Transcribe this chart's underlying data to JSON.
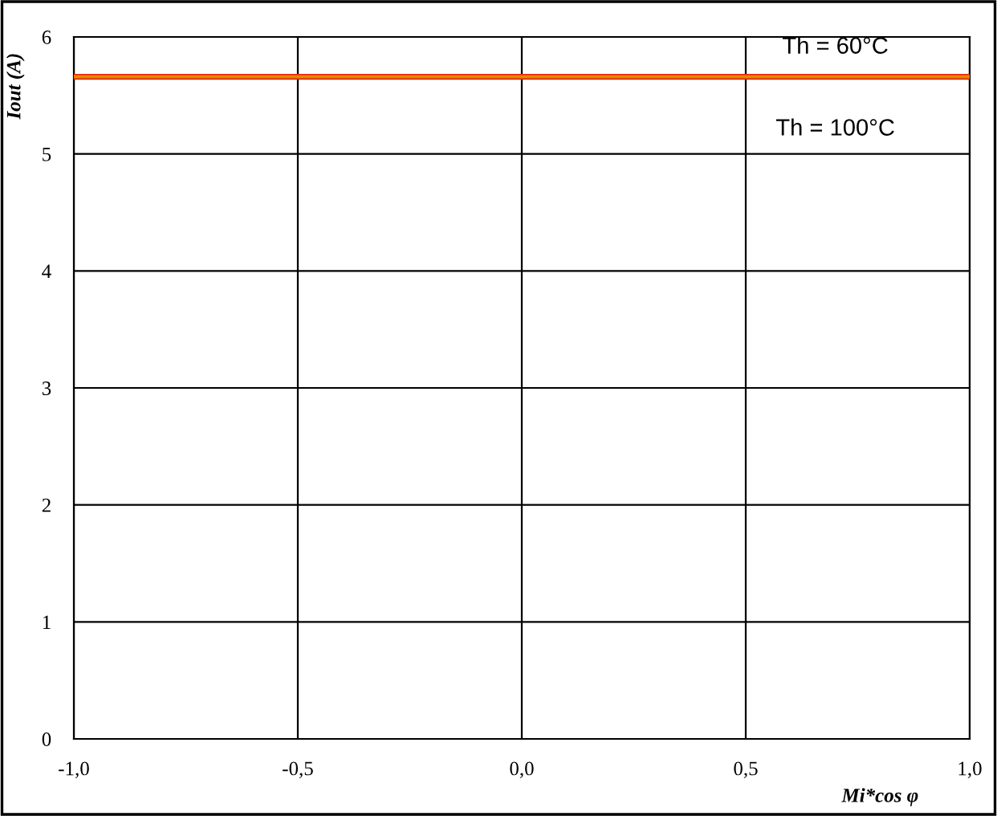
{
  "chart_data": {
    "type": "line",
    "xlabel": "Mi*cos φ",
    "ylabel": "Iout (A)",
    "x": [
      -1.0,
      1.0
    ],
    "series": [
      {
        "name": "Th = 100°C",
        "color": "#e8200c",
        "values": [
          5.66,
          5.66
        ]
      },
      {
        "name": "Th = 60°C",
        "color": "#e08a00",
        "values": [
          5.66,
          5.66
        ]
      }
    ],
    "xlim": [
      -1.0,
      1.0
    ],
    "xticks": [
      {
        "value": -1.0,
        "label": "-1,0"
      },
      {
        "value": -0.5,
        "label": "-0,5"
      },
      {
        "value": 0.0,
        "label": "0,0"
      },
      {
        "value": 0.5,
        "label": "0,5"
      },
      {
        "value": 1.0,
        "label": "1,0"
      }
    ],
    "ylim": [
      0,
      6
    ],
    "yticks": [
      0,
      1,
      2,
      3,
      4,
      5,
      6
    ],
    "grid": true,
    "marker": "none",
    "line_style": "solid"
  }
}
